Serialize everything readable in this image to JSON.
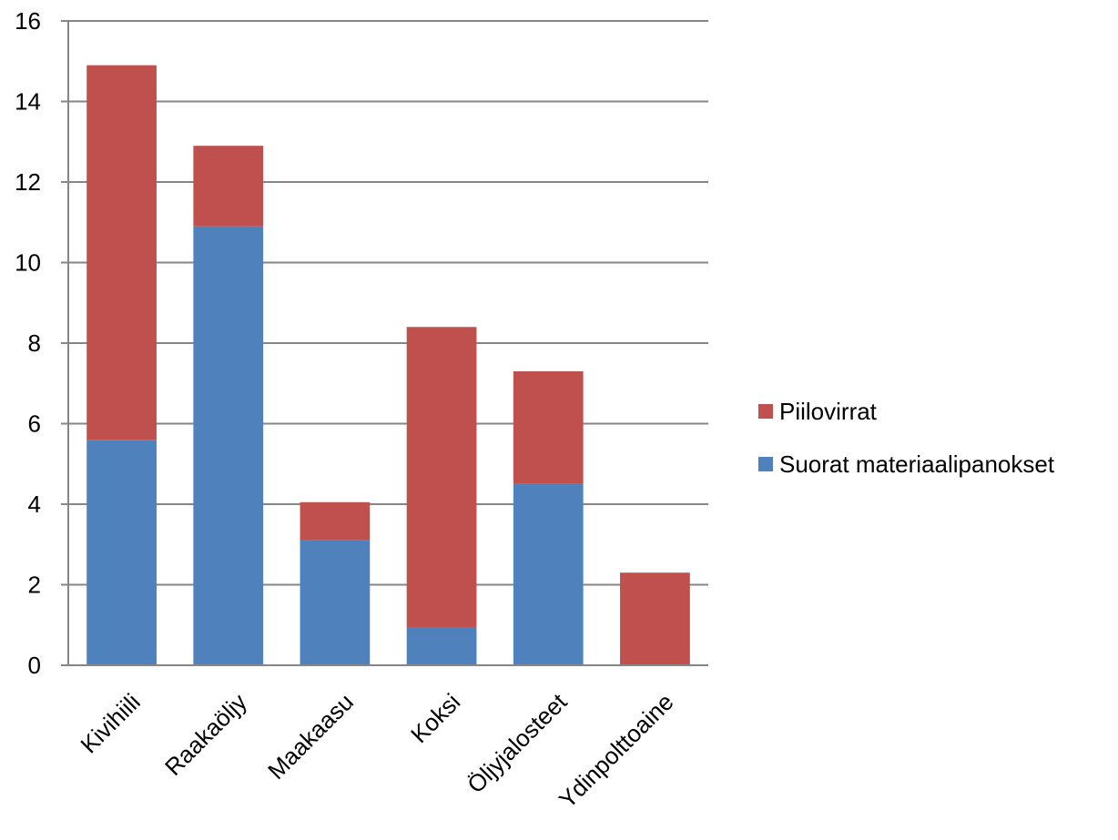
{
  "chart_data": {
    "type": "bar",
    "stacked": true,
    "categories": [
      "Kivihiili",
      "Raakaöljy",
      "Maakaasu",
      "Koksi",
      "Öljyjalosteet",
      "Ydinpolttoaine"
    ],
    "series": [
      {
        "name": "Suorat materiaalipanokset",
        "color": "#4F81BD",
        "values": [
          5.6,
          10.9,
          3.1,
          0.95,
          4.5,
          0
        ]
      },
      {
        "name": "Piilovirrat",
        "color": "#C0504D",
        "values": [
          9.3,
          2.0,
          0.95,
          7.45,
          2.8,
          2.3
        ]
      }
    ],
    "ylim": [
      0,
      16
    ],
    "yticks": [
      0,
      2,
      4,
      6,
      8,
      10,
      12,
      14,
      16
    ],
    "grid": true,
    "legend": "right",
    "legend_order": [
      "Piilovirrat",
      "Suorat materiaalipanokset"
    ]
  }
}
